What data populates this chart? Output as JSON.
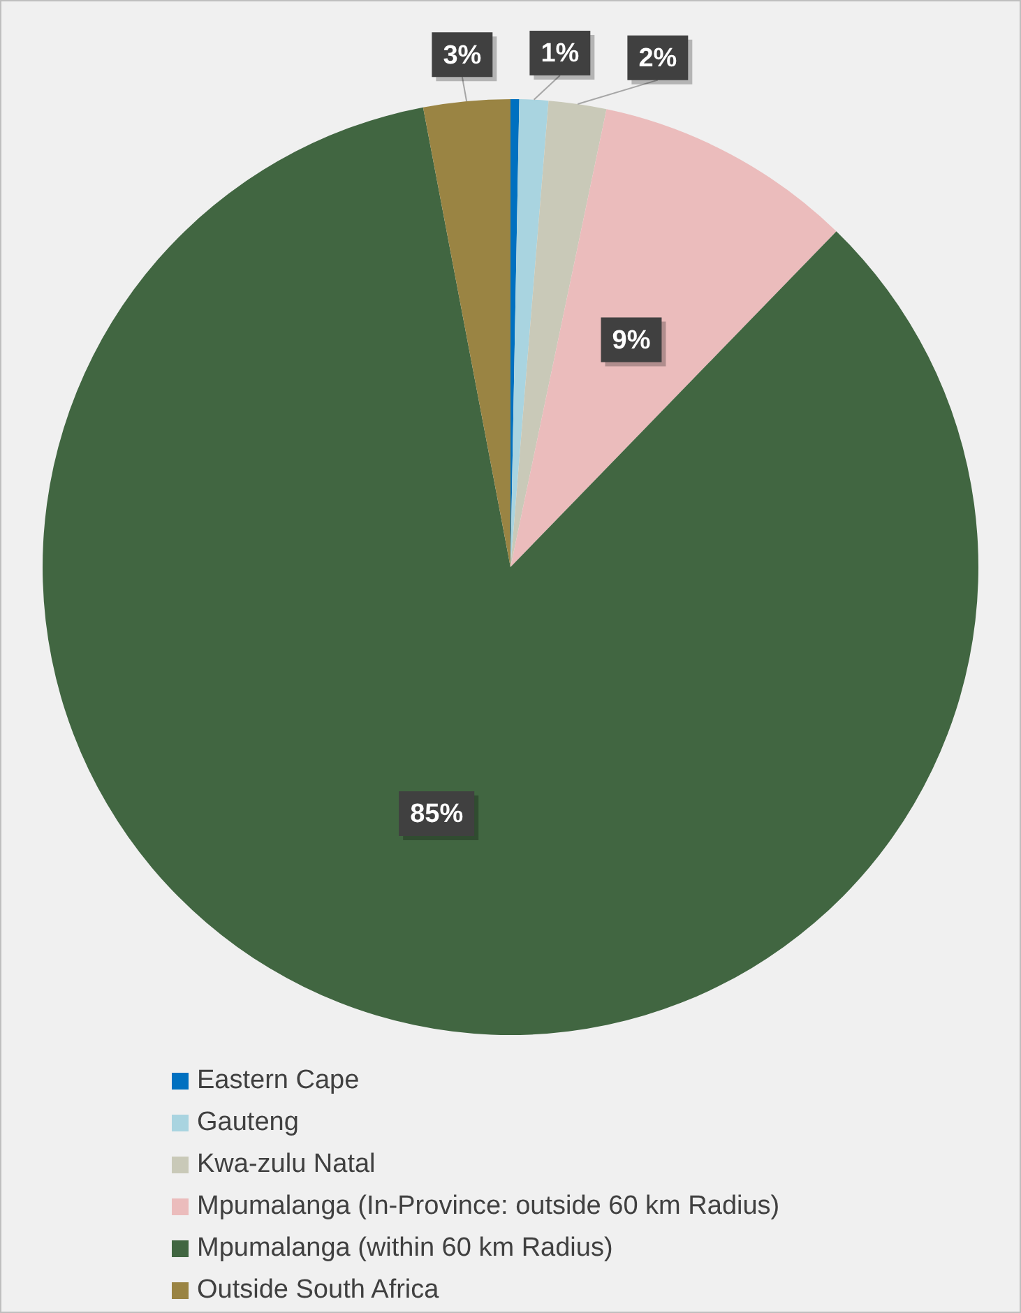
{
  "chart_data": {
    "type": "pie",
    "categories": [
      "Eastern Cape",
      "Gauteng",
      "Kwa-zulu Natal",
      "Mpumalanga (In-Province: outside 60 km Radius)",
      "Mpumalanga (within 60 km Radius)",
      "Outside South Africa"
    ],
    "values": [
      0.3,
      1,
      2,
      9,
      85,
      3
    ],
    "colors": [
      "#0070c0",
      "#a9d4e0",
      "#c9c9b8",
      "#ebbcbc",
      "#416641",
      "#9a8443"
    ],
    "value_labels": [
      null,
      "1%",
      "2%",
      "9%",
      "85%",
      "3%"
    ],
    "legend": "bottom"
  }
}
